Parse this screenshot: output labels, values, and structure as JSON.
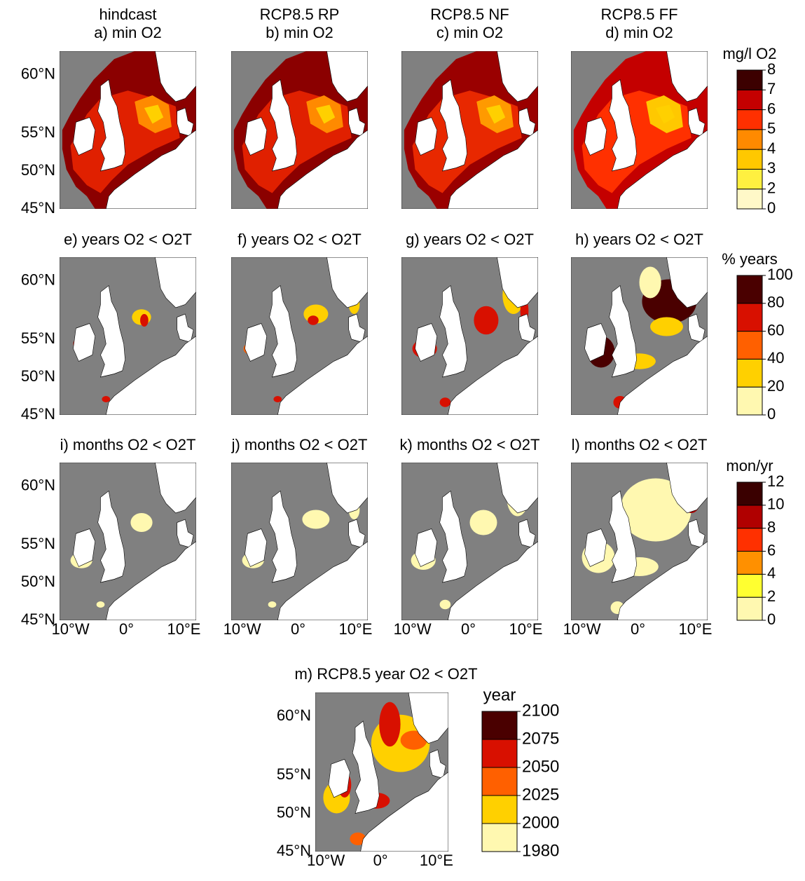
{
  "rows": [
    {
      "panels": [
        {
          "title": [
            "hindcast",
            "a) min O2"
          ]
        },
        {
          "title": [
            "RCP8.5 RP",
            "b) min O2"
          ]
        },
        {
          "title": [
            "RCP8.5 NF",
            "c) min O2"
          ]
        },
        {
          "title": [
            "RCP8.5 FF",
            "d) min O2"
          ]
        }
      ],
      "colorbar": {
        "unit": "mg/l O2",
        "levels": [
          0,
          2,
          3,
          4,
          5,
          6,
          7,
          8
        ],
        "colors": [
          "#fff8c8",
          "#fff040",
          "#ffc800",
          "#ff8a00",
          "#ff3000",
          "#c40000",
          "#3c0000"
        ]
      }
    },
    {
      "panels": [
        {
          "title": [
            "e) years O2 < O2T"
          ]
        },
        {
          "title": [
            "f) years O2 < O2T"
          ]
        },
        {
          "title": [
            "g) years O2 < O2T"
          ]
        },
        {
          "title": [
            "h) years O2 < O2T"
          ]
        }
      ],
      "colorbar": {
        "unit": "% years",
        "levels": [
          0,
          20,
          40,
          60,
          80,
          100
        ],
        "colors": [
          "#fff8b0",
          "#ffd000",
          "#ff6000",
          "#d81000",
          "#4a0000"
        ]
      }
    },
    {
      "panels": [
        {
          "title": [
            "i) months O2 < O2T"
          ]
        },
        {
          "title": [
            "j) months O2 < O2T"
          ]
        },
        {
          "title": [
            "k) months O2 < O2T"
          ]
        },
        {
          "title": [
            "l) months O2 < O2T"
          ]
        }
      ],
      "colorbar": {
        "unit": "mon/yr",
        "levels": [
          0,
          2,
          4,
          6,
          8,
          10,
          12
        ],
        "colors": [
          "#fff8b0",
          "#ffff30",
          "#ff9000",
          "#ff3000",
          "#b00000",
          "#3a0000"
        ]
      }
    }
  ],
  "bottom": {
    "title": "m) RCP8.5 year O2 < O2T",
    "colorbar": {
      "unit": "year",
      "levels": [
        1980,
        2000,
        2025,
        2050,
        2075,
        2100
      ],
      "colors": [
        "#fff8b0",
        "#ffd000",
        "#ff6000",
        "#d81000",
        "#4a0000"
      ]
    }
  },
  "lat_labels": [
    "60°N",
    "55°N",
    "50°N",
    "45°N"
  ],
  "lon_labels": [
    "10°W",
    "0°",
    "10°E"
  ]
}
